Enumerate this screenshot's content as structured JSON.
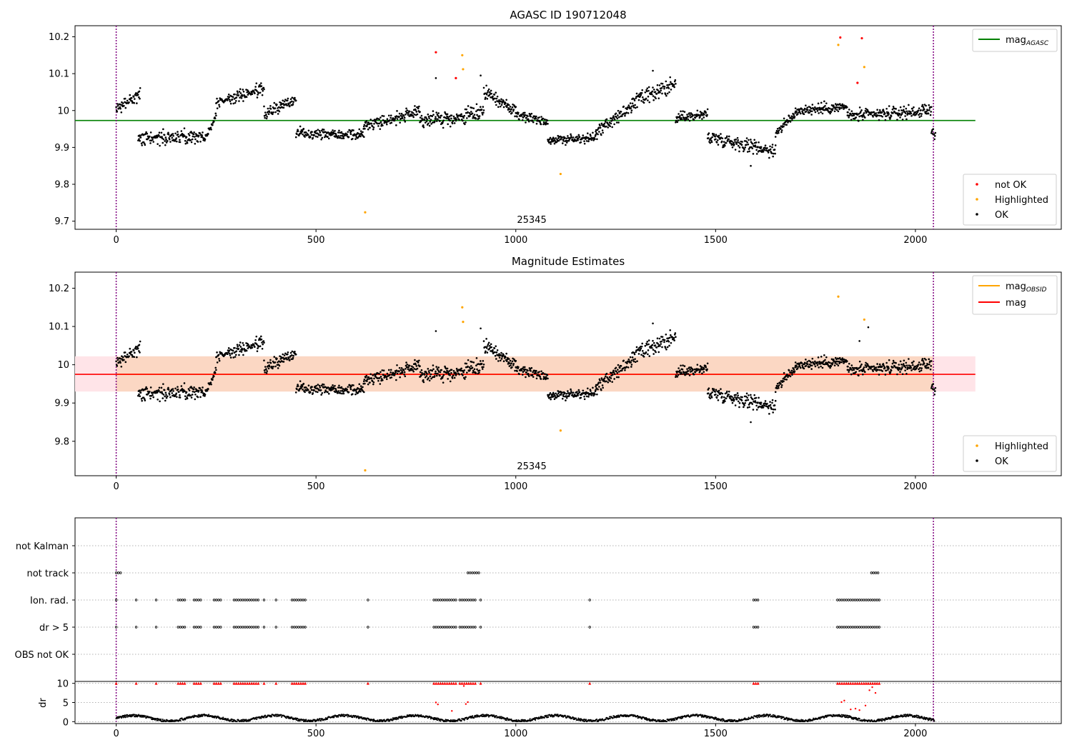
{
  "figure": {
    "top_title": "AGASC ID 190712048",
    "mid_title": "Magnitude Estimates",
    "obsid_label": "25345",
    "colors": {
      "ok": "#000000",
      "highlighted": "#ffa500",
      "not_ok": "#ff0000",
      "mag_agasc": "#008000",
      "mag_obsid": "#ffa500",
      "mag": "#ff0000",
      "band_obsid": "#fbd7c3",
      "band_mag": "#ffe4e8",
      "vline": "#800080",
      "grid": "#b0b0b0"
    }
  },
  "chart_data": [
    {
      "type": "scatter",
      "title": "AGASC ID 190712048",
      "xlim": [
        -103,
        2365
      ],
      "ylim": [
        9.678,
        10.23
      ],
      "x_ticks": [
        0,
        500,
        1000,
        1500,
        2000
      ],
      "y_ticks": [
        9.7,
        9.8,
        9.9,
        10.0,
        10.1,
        10.2
      ],
      "vlines": [
        0,
        2045
      ],
      "hlines": [
        {
          "name": "mag_AGASC",
          "y": 9.973,
          "x_range": [
            -103,
            2150
          ],
          "color": "#008000"
        }
      ],
      "annotations": [
        {
          "text": "25345",
          "x": 1022,
          "y": 9.7
        }
      ],
      "legend_lines": [
        {
          "label": "mag",
          "sub": "AGASC",
          "color": "#008000"
        }
      ],
      "legend_points": [
        {
          "label": "not OK",
          "color": "#ff0000"
        },
        {
          "label": "Highlighted",
          "color": "#ffa500"
        },
        {
          "label": "OK",
          "color": "#000000"
        }
      ],
      "series": [
        {
          "name": "not OK",
          "color": "#ff0000",
          "points": [
            [
              800,
              10.158
            ],
            [
              850,
              10.088
            ],
            [
              1812,
              10.198
            ],
            [
              1866,
              10.196
            ],
            [
              1855,
              10.075
            ]
          ]
        },
        {
          "name": "Highlighted",
          "color": "#ffa500",
          "points": [
            [
              623,
              9.724
            ],
            [
              866,
              10.15
            ],
            [
              868,
              10.112
            ],
            [
              1112,
              9.828
            ],
            [
              1807,
              10.178
            ],
            [
              1872,
              10.118
            ]
          ]
        },
        {
          "name": "OK",
          "color": "#000000",
          "segments": [
            [
              0,
              60,
              10.0,
              10.05,
              0.025
            ],
            [
              55,
              230,
              9.925,
              9.93,
              0.028
            ],
            [
              230,
              250,
              9.94,
              9.99,
              0.018
            ],
            [
              250,
              370,
              10.02,
              10.06,
              0.022
            ],
            [
              370,
              450,
              9.99,
              10.03,
              0.025
            ],
            [
              450,
              620,
              9.94,
              9.935,
              0.022
            ],
            [
              620,
              760,
              9.96,
              9.995,
              0.025
            ],
            [
              760,
              830,
              9.975,
              9.98,
              0.03
            ],
            [
              830,
              920,
              9.97,
              10.0,
              0.03
            ],
            [
              920,
              1000,
              10.05,
              10.0,
              0.025
            ],
            [
              1000,
              1080,
              9.99,
              9.97,
              0.02
            ],
            [
              1080,
              1200,
              9.92,
              9.925,
              0.02
            ],
            [
              1200,
              1290,
              9.94,
              10.01,
              0.025
            ],
            [
              1290,
              1400,
              10.02,
              10.07,
              0.035
            ],
            [
              1400,
              1480,
              9.98,
              9.99,
              0.022
            ],
            [
              1480,
              1650,
              9.93,
              9.89,
              0.028
            ],
            [
              1650,
              1700,
              9.94,
              9.99,
              0.022
            ],
            [
              1700,
              1830,
              10.0,
              10.01,
              0.022
            ],
            [
              1830,
              1910,
              9.985,
              9.99,
              0.025
            ],
            [
              1910,
              2040,
              9.99,
              10.0,
              0.025
            ],
            [
              2040,
              2050,
              9.95,
              9.935,
              0.02
            ]
          ],
          "outliers": [
            [
              800,
              10.088
            ],
            [
              912,
              10.095
            ],
            [
              1343,
              10.108
            ],
            [
              1588,
              9.85
            ]
          ]
        }
      ]
    },
    {
      "type": "scatter",
      "title": "Magnitude Estimates",
      "xlim": [
        -103,
        2365
      ],
      "ylim": [
        9.71,
        10.242
      ],
      "x_ticks": [
        0,
        500,
        1000,
        1500,
        2000
      ],
      "y_ticks": [
        9.8,
        9.9,
        10.0,
        10.1,
        10.2
      ],
      "vlines": [
        0,
        2045
      ],
      "bands": [
        {
          "name": "mag band",
          "x_range": [
            -103,
            2150
          ],
          "y_range": [
            9.93,
            10.022
          ],
          "color": "#ffe4e8"
        },
        {
          "name": "mag_OBSID band",
          "x_range": [
            0,
            2045
          ],
          "y_range": [
            9.93,
            10.022
          ],
          "color": "#fbd7c3"
        }
      ],
      "hlines": [
        {
          "name": "mag_OBSID",
          "y": 9.975,
          "x_range": [
            0,
            2045
          ],
          "color": "#ffa500"
        },
        {
          "name": "mag",
          "y": 9.975,
          "x_range": [
            -103,
            2150
          ],
          "color": "#ff0000"
        }
      ],
      "annotations": [
        {
          "text": "25345",
          "x": 1022,
          "y": 9.73
        }
      ],
      "legend_lines": [
        {
          "label": "mag",
          "sub": "OBSID",
          "color": "#ffa500"
        },
        {
          "label": "mag",
          "sub": "",
          "color": "#ff0000"
        }
      ],
      "legend_points": [
        {
          "label": "Highlighted",
          "color": "#ffa500"
        },
        {
          "label": "OK",
          "color": "#000000"
        }
      ],
      "series": [
        {
          "name": "Highlighted",
          "color": "#ffa500",
          "points": [
            [
              623,
              9.724
            ],
            [
              866,
              10.15
            ],
            [
              868,
              10.112
            ],
            [
              1112,
              9.828
            ],
            [
              1807,
              10.178
            ],
            [
              1872,
              10.118
            ]
          ]
        },
        {
          "name": "OK",
          "color": "#000000",
          "segments": [
            [
              0,
              60,
              10.0,
              10.05,
              0.025
            ],
            [
              55,
              230,
              9.925,
              9.93,
              0.028
            ],
            [
              230,
              250,
              9.94,
              9.99,
              0.018
            ],
            [
              250,
              370,
              10.02,
              10.06,
              0.022
            ],
            [
              370,
              450,
              9.99,
              10.03,
              0.025
            ],
            [
              450,
              620,
              9.94,
              9.935,
              0.022
            ],
            [
              620,
              760,
              9.96,
              9.995,
              0.025
            ],
            [
              760,
              830,
              9.975,
              9.98,
              0.03
            ],
            [
              830,
              920,
              9.97,
              10.0,
              0.03
            ],
            [
              920,
              1000,
              10.05,
              10.0,
              0.025
            ],
            [
              1000,
              1080,
              9.99,
              9.97,
              0.02
            ],
            [
              1080,
              1200,
              9.92,
              9.925,
              0.02
            ],
            [
              1200,
              1290,
              9.94,
              10.01,
              0.025
            ],
            [
              1290,
              1400,
              10.02,
              10.07,
              0.035
            ],
            [
              1400,
              1480,
              9.98,
              9.99,
              0.022
            ],
            [
              1480,
              1650,
              9.93,
              9.89,
              0.028
            ],
            [
              1650,
              1700,
              9.94,
              9.99,
              0.022
            ],
            [
              1700,
              1830,
              10.0,
              10.01,
              0.022
            ],
            [
              1830,
              1910,
              9.985,
              9.99,
              0.025
            ],
            [
              1910,
              2040,
              9.99,
              10.0,
              0.025
            ],
            [
              2040,
              2050,
              9.95,
              9.935,
              0.02
            ]
          ],
          "outliers": [
            [
              800,
              10.088
            ],
            [
              912,
              10.095
            ],
            [
              1343,
              10.108
            ],
            [
              1588,
              9.85
            ],
            [
              1860,
              10.062
            ],
            [
              1882,
              10.098
            ]
          ]
        }
      ]
    },
    {
      "type": "scatter",
      "title": "",
      "xlim": [
        -103,
        2365
      ],
      "flag_rows": [
        "not Kalman",
        "not track",
        "Ion. rad.",
        "dr > 5",
        "OBS not OK"
      ],
      "flags": {
        "not track": [
          [
            0,
            12
          ],
          [
            880,
            912
          ],
          [
            1890,
            1910
          ]
        ],
        "Ion. rad.": [
          [
            0,
            5
          ],
          [
            50,
            55
          ],
          [
            100,
            102
          ],
          [
            155,
            175
          ],
          [
            195,
            215
          ],
          [
            245,
            265
          ],
          [
            295,
            360
          ],
          [
            370,
            375
          ],
          [
            400,
            405
          ],
          [
            440,
            475
          ],
          [
            630,
            632
          ],
          [
            795,
            855
          ],
          [
            860,
            900
          ],
          [
            912,
            915
          ],
          [
            1185,
            1187
          ],
          [
            1595,
            1610
          ],
          [
            1805,
            1910
          ]
        ],
        "dr > 5": [
          [
            0,
            5
          ],
          [
            50,
            55
          ],
          [
            100,
            102
          ],
          [
            155,
            175
          ],
          [
            195,
            215
          ],
          [
            245,
            265
          ],
          [
            295,
            360
          ],
          [
            370,
            375
          ],
          [
            400,
            405
          ],
          [
            440,
            475
          ],
          [
            630,
            632
          ],
          [
            795,
            855
          ],
          [
            860,
            900
          ],
          [
            912,
            915
          ],
          [
            1185,
            1187
          ],
          [
            1595,
            1610
          ],
          [
            1805,
            1910
          ]
        ]
      },
      "dr_ylabel": "dr",
      "dr_ylim": [
        -0.5,
        10.5
      ],
      "dr_ticks": [
        0,
        5,
        10
      ],
      "dr_capped_value": 10
    }
  ]
}
